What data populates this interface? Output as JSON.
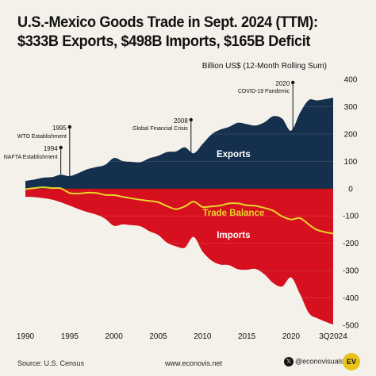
{
  "title_line1": "U.S.-Mexico Goods Trade in Sept. 2024 (TTM):",
  "title_line2": "$333B Exports, $498B Imports, $165B Deficit",
  "footer": {
    "source": "Source: U.S. Census",
    "website": "www.econovis.net",
    "handle": "@econovisuals",
    "x_icon": "x-logo-icon",
    "logo_text": "EV"
  },
  "colors": {
    "exports": "#14304d",
    "imports": "#d6101e",
    "balance": "#e7d629",
    "background": "#f4f1ea"
  },
  "chart_data": {
    "type": "area",
    "ylabel": "Billion US$ (12-Month Rolling Sum)",
    "ylim": [
      -500,
      400
    ],
    "yticks": [
      400,
      300,
      200,
      100,
      0,
      -100,
      -200,
      -300,
      -400,
      -500
    ],
    "xlim": [
      1990,
      2024.75
    ],
    "xticks": [
      {
        "x": 1990,
        "label": "1990"
      },
      {
        "x": 1995,
        "label": "1995"
      },
      {
        "x": 2000,
        "label": "2000"
      },
      {
        "x": 2005,
        "label": "2005"
      },
      {
        "x": 2010,
        "label": "2010"
      },
      {
        "x": 2015,
        "label": "2015"
      },
      {
        "x": 2020,
        "label": "2020"
      },
      {
        "x": 2024.75,
        "label": "3Q2024"
      }
    ],
    "x": [
      1990,
      1991,
      1992,
      1993,
      1994,
      1995,
      1996,
      1997,
      1998,
      1999,
      2000,
      2001,
      2002,
      2003,
      2004,
      2005,
      2006,
      2007,
      2008,
      2009,
      2010,
      2011,
      2012,
      2013,
      2014,
      2015,
      2016,
      2017,
      2018,
      2019,
      2020,
      2021,
      2022,
      2023,
      2024.75
    ],
    "series": [
      {
        "name": "Exports",
        "values": [
          28,
          33,
          40,
          42,
          51,
          46,
          57,
          71,
          79,
          87,
          112,
          101,
          98,
          97,
          111,
          120,
          134,
          136,
          151,
          129,
          163,
          198,
          216,
          226,
          241,
          236,
          231,
          243,
          265,
          256,
          212,
          277,
          324,
          323,
          333
        ]
      },
      {
        "name": "Imports",
        "values": [
          -30,
          -31,
          -35,
          -40,
          -50,
          -62,
          -75,
          -86,
          -95,
          -110,
          -136,
          -131,
          -134,
          -138,
          -156,
          -170,
          -198,
          -211,
          -216,
          -177,
          -230,
          -263,
          -278,
          -280,
          -295,
          -297,
          -294,
          -314,
          -346,
          -358,
          -325,
          -385,
          -455,
          -475,
          -498
        ]
      },
      {
        "name": "Trade Balance",
        "values": [
          -2,
          2,
          5,
          2,
          1,
          -16,
          -18,
          -15,
          -16,
          -23,
          -24,
          -30,
          -36,
          -41,
          -45,
          -50,
          -64,
          -75,
          -65,
          -48,
          -67,
          -65,
          -62,
          -54,
          -54,
          -61,
          -63,
          -71,
          -81,
          -102,
          -113,
          -108,
          -131,
          -152,
          -165
        ]
      }
    ],
    "series_labels": [
      "Exports",
      "Trade Balance",
      "Imports"
    ],
    "annotations": [
      {
        "x": 1994,
        "y": 51,
        "line1": "1994",
        "line2": "NAFTA Establishment"
      },
      {
        "x": 1995,
        "y": 46,
        "line1": "1995",
        "line2": "WTO Establishment"
      },
      {
        "x": 2008.7,
        "y": 130,
        "line1": "2008",
        "line2": "Global Financial Crisis"
      },
      {
        "x": 2020.2,
        "y": 212,
        "line1": "2020",
        "line2": "COVID-19 Pandemic"
      }
    ]
  }
}
